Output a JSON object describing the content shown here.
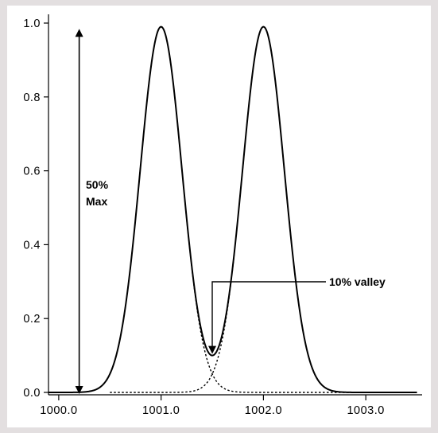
{
  "chart_data": {
    "type": "line",
    "title": "",
    "xlabel": "",
    "ylabel": "",
    "xlim": [
      999.9,
      1003.55
    ],
    "ylim": [
      -0.01,
      1.0
    ],
    "x_ticks": [
      {
        "value": 1000.0,
        "label": "1000.0"
      },
      {
        "value": 1001.0,
        "label": "1001.0"
      },
      {
        "value": 1002.0,
        "label": "1002.0"
      },
      {
        "value": 1003.0,
        "label": "1003.0"
      }
    ],
    "y_ticks": [
      {
        "value": 0.0,
        "label": "0.0"
      },
      {
        "value": 0.2,
        "label": "0.2"
      },
      {
        "value": 0.4,
        "label": "0.4"
      },
      {
        "value": 0.6,
        "label": "0.6"
      },
      {
        "value": 0.8,
        "label": "0.8"
      },
      {
        "value": 1.0,
        "label": "1.0"
      }
    ],
    "grid": false,
    "legend": "none",
    "series": [
      {
        "style": "solid",
        "color": "#000000",
        "description_value": "sum of two Gaussian peaks",
        "peaks": [
          {
            "center": 1001.0,
            "height": 0.99
          },
          {
            "center": 1002.0,
            "height": 0.99
          }
        ],
        "valley": {
          "x": 1001.5,
          "y": 0.1
        }
      },
      {
        "style": "dotted",
        "color": "#000000",
        "peak": {
          "center": 1001.0,
          "height": 0.99
        }
      },
      {
        "style": "dotted",
        "color": "#000000",
        "peak": {
          "center": 1002.0,
          "height": 0.99
        }
      }
    ],
    "annotations": {
      "half_max_line1": "50%",
      "half_max_line2": "Max",
      "valley_label": "10% valley"
    },
    "arrow_range": {
      "x": 1000.2,
      "from": 0.0,
      "to": 0.98
    }
  }
}
